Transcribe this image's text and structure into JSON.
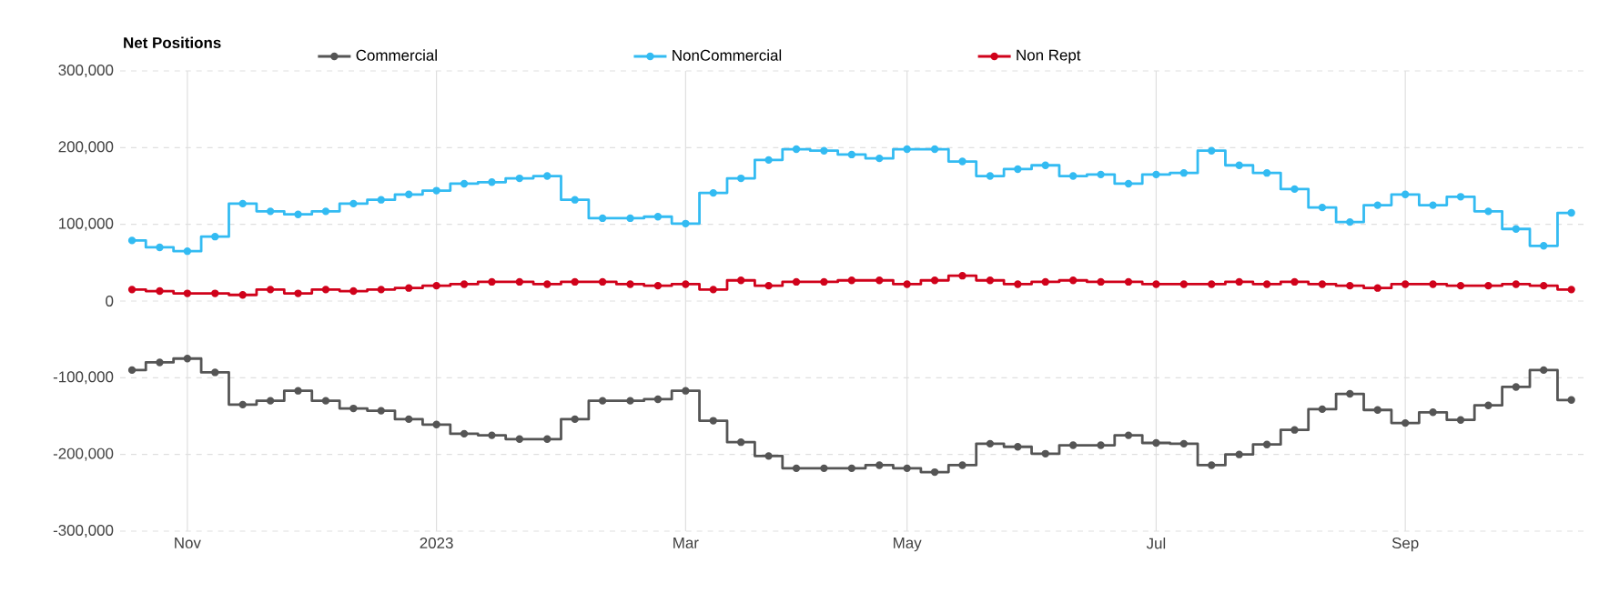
{
  "chart_data": {
    "type": "step",
    "title": "Net Positions",
    "x": [
      "2022-10-18",
      "2022-10-25",
      "2022-11-01",
      "2022-11-08",
      "2022-11-15",
      "2022-11-22",
      "2022-11-29",
      "2022-12-06",
      "2022-12-13",
      "2022-12-20",
      "2022-12-27",
      "2023-01-03",
      "2023-01-10",
      "2023-01-17",
      "2023-01-24",
      "2023-01-31",
      "2023-02-07",
      "2023-02-14",
      "2023-02-21",
      "2023-02-28",
      "2023-03-07",
      "2023-03-14",
      "2023-03-21",
      "2023-03-28",
      "2023-04-04",
      "2023-04-11",
      "2023-04-18",
      "2023-04-25",
      "2023-05-02",
      "2023-05-09",
      "2023-05-16",
      "2023-05-23",
      "2023-05-30",
      "2023-06-06",
      "2023-06-13",
      "2023-06-20",
      "2023-06-27",
      "2023-07-04",
      "2023-07-11",
      "2023-07-18",
      "2023-07-25",
      "2023-08-01",
      "2023-08-08",
      "2023-08-15",
      "2023-08-22",
      "2023-08-29",
      "2023-09-05",
      "2023-09-12",
      "2023-09-19",
      "2023-09-26",
      "2023-10-03",
      "2023-10-10",
      "2023-10-17"
    ],
    "series": [
      {
        "name": "Commercial",
        "color": "#555555",
        "values": [
          -90000,
          -80000,
          -75000,
          -93000,
          -135000,
          -130000,
          -117000,
          -130000,
          -140000,
          -143000,
          -154000,
          -161000,
          -173000,
          -175000,
          -180000,
          -180000,
          -154000,
          -130000,
          -130000,
          -128000,
          -117000,
          -156000,
          -184000,
          -202000,
          -218000,
          -218000,
          -218000,
          -214000,
          -218000,
          -223000,
          -214000,
          -186000,
          -190000,
          -199000,
          -188000,
          -188000,
          -175000,
          -185000,
          -186000,
          -214000,
          -200000,
          -187000,
          -168000,
          -141000,
          -121000,
          -142000,
          -159000,
          -145000,
          -155000,
          -136000,
          -112000,
          -90000,
          -129000
        ]
      },
      {
        "name": "NonCommercial",
        "color": "#33bbf2",
        "values": [
          79000,
          70000,
          65000,
          84000,
          127000,
          117000,
          113000,
          117000,
          127000,
          132000,
          139000,
          144000,
          153000,
          155000,
          160000,
          163000,
          132000,
          108000,
          108000,
          110000,
          101000,
          141000,
          160000,
          184000,
          198000,
          196000,
          191000,
          186000,
          198000,
          198000,
          182000,
          163000,
          172000,
          177000,
          163000,
          165000,
          153000,
          165000,
          167000,
          196000,
          177000,
          167000,
          146000,
          122000,
          103000,
          125000,
          139000,
          125000,
          136000,
          117000,
          94000,
          72000,
          115000
        ]
      },
      {
        "name": "Non Rept",
        "color": "#d0021b",
        "values": [
          15000,
          13000,
          10000,
          10000,
          8000,
          15000,
          10000,
          15000,
          13000,
          15000,
          17000,
          20000,
          22000,
          25000,
          25000,
          22000,
          25000,
          25000,
          22000,
          20000,
          22000,
          15000,
          27000,
          20000,
          25000,
          25000,
          27000,
          27000,
          22000,
          27000,
          33000,
          27000,
          22000,
          25000,
          27000,
          25000,
          25000,
          22000,
          22000,
          22000,
          25000,
          22000,
          25000,
          22000,
          20000,
          17000,
          22000,
          22000,
          20000,
          20000,
          22000,
          20000,
          15000
        ]
      }
    ],
    "xlim": [
      "2022-10-15",
      "2023-10-21"
    ],
    "xticks": [
      {
        "value": "2022-11-01",
        "label": "Nov"
      },
      {
        "value": "2023-01-03",
        "label": "2023"
      },
      {
        "value": "2023-03-07",
        "label": "Mar"
      },
      {
        "value": "2023-05-02",
        "label": "May"
      },
      {
        "value": "2023-07-04",
        "label": "Jul"
      },
      {
        "value": "2023-09-05",
        "label": "Sep"
      }
    ],
    "ylim": [
      -300000,
      300000
    ],
    "yticks": [
      {
        "value": -300000,
        "label": "-300,000"
      },
      {
        "value": -200000,
        "label": "-200,000"
      },
      {
        "value": -100000,
        "label": "-100,000"
      },
      0,
      {
        "value": 100000,
        "label": "100,000"
      },
      {
        "value": 200000,
        "label": "200,000"
      },
      {
        "value": 300000,
        "label": "300,000"
      }
    ],
    "grid": true,
    "legend": "top",
    "marker": "circle"
  }
}
